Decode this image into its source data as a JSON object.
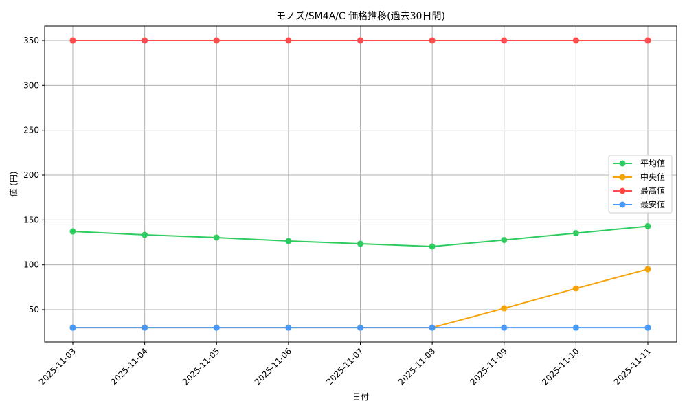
{
  "chart_data": {
    "type": "line",
    "title": "モノズ/SM4A/C 価格推移(過去30日間)",
    "xlabel": "日付",
    "ylabel": "値 (円)",
    "categories": [
      "2025-11-03",
      "2025-11-04",
      "2025-11-05",
      "2025-11-06",
      "2025-11-07",
      "2025-11-08",
      "2025-11-09",
      "2025-11-10",
      "2025-11-11"
    ],
    "yticks": [
      50,
      100,
      150,
      200,
      250,
      300,
      350
    ],
    "ylim": [
      13,
      366
    ],
    "grid": true,
    "legend_position": "center right",
    "series": [
      {
        "name": "平均値",
        "color": "#2ecc5f",
        "values": [
          137.2,
          133.4,
          130.4,
          126.5,
          123.5,
          120.4,
          127.7,
          135.3,
          143.0
        ]
      },
      {
        "name": "中央値",
        "color": "#f5a30a",
        "values": [
          30,
          30,
          30,
          30,
          30,
          30,
          51.5,
          73.7,
          95.2
        ]
      },
      {
        "name": "最高値",
        "color": "#ff4b4b",
        "values": [
          350,
          350,
          350,
          350,
          350,
          350,
          350,
          350,
          350
        ]
      },
      {
        "name": "最安値",
        "color": "#4a9af5",
        "values": [
          30,
          30,
          30,
          30,
          30,
          30,
          30,
          30,
          30
        ]
      }
    ]
  }
}
